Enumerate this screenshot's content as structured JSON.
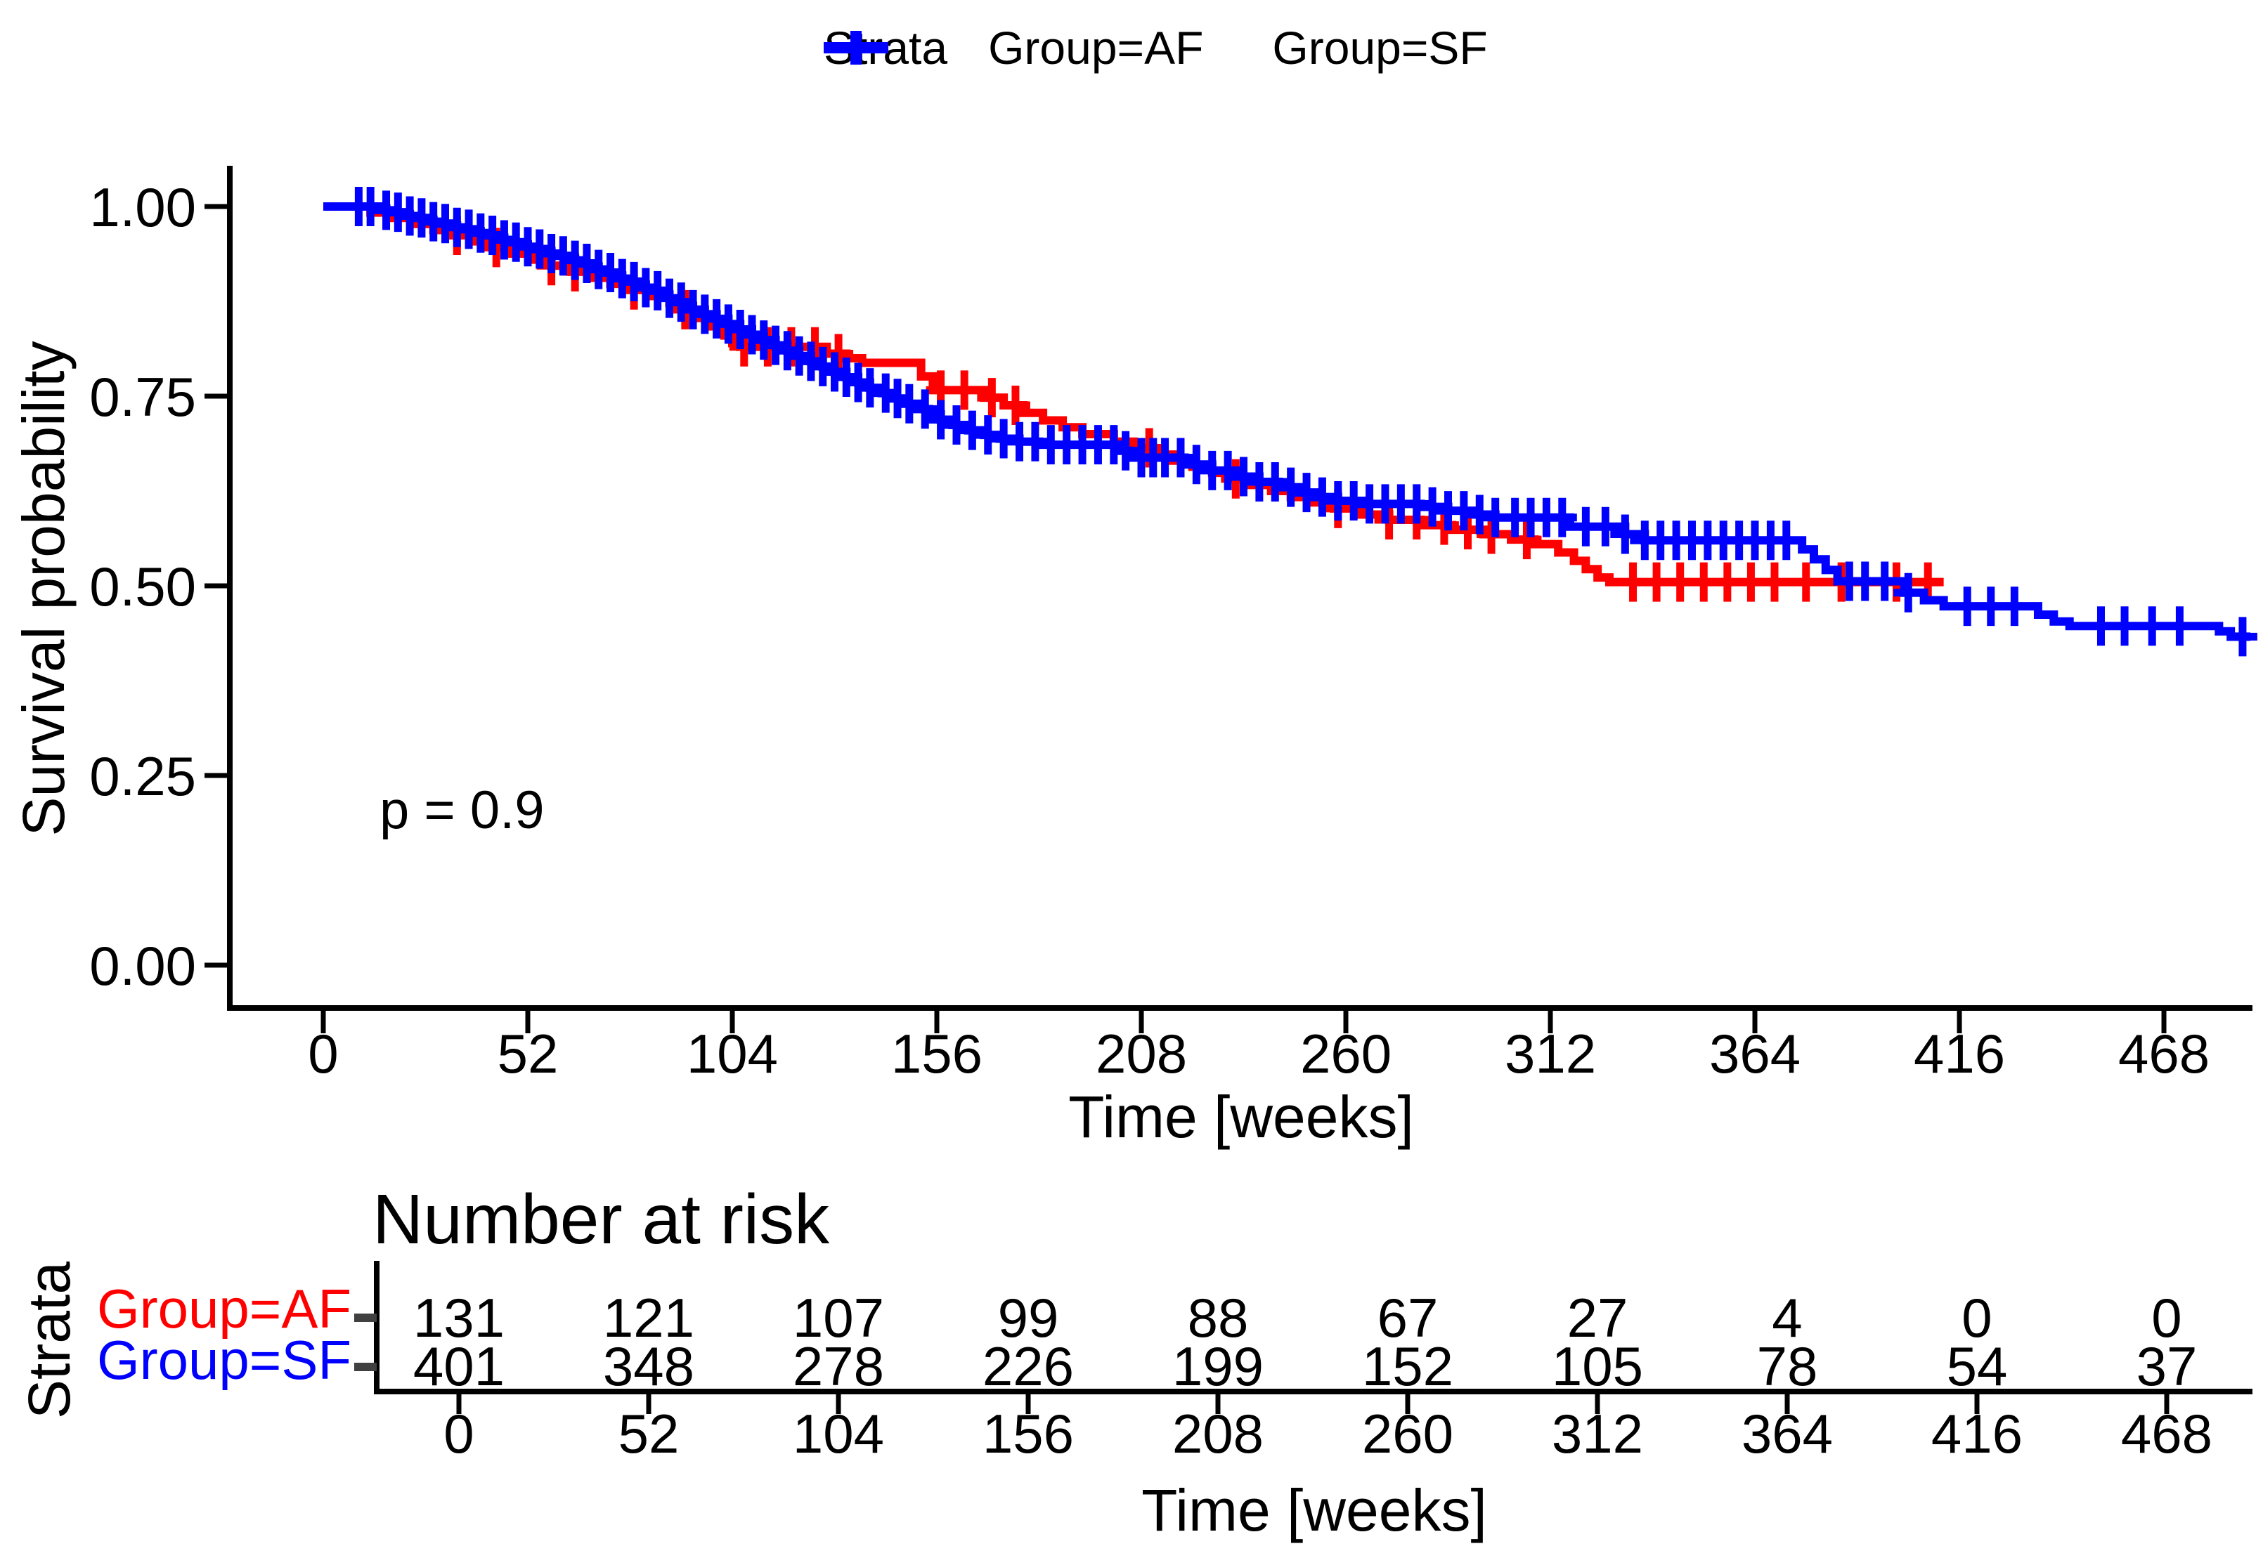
{
  "legend": {
    "title": "Strata",
    "items": [
      {
        "label": "Group=AF",
        "color": "#FF0000"
      },
      {
        "label": "Group=SF",
        "color": "#0000FF"
      }
    ]
  },
  "axes": {
    "y_title": "Survival probability",
    "x_title": "Time [weeks]",
    "y_ticks": [
      "1.00",
      "0.75",
      "0.50",
      "0.25",
      "0.00"
    ],
    "x_ticks": [
      0,
      52,
      104,
      156,
      208,
      260,
      312,
      364,
      416,
      468
    ]
  },
  "annotation": {
    "p_value": "p = 0.9"
  },
  "risk_table": {
    "title": "Number at risk",
    "axis_label": "Strata",
    "x_title": "Time [weeks]",
    "x_ticks": [
      0,
      52,
      104,
      156,
      208,
      260,
      312,
      364,
      416,
      468
    ],
    "rows": [
      {
        "label": "Group=AF",
        "color": "#FF0000",
        "counts": [
          131,
          121,
          107,
          99,
          88,
          67,
          27,
          4,
          0,
          0
        ]
      },
      {
        "label": "Group=SF",
        "color": "#0000FF",
        "counts": [
          401,
          348,
          278,
          226,
          199,
          152,
          105,
          78,
          54,
          37
        ]
      }
    ]
  },
  "chart_data": {
    "type": "line",
    "subtype": "kaplan-meier-step",
    "title": "",
    "xlabel": "Time [weeks]",
    "ylabel": "Survival probability",
    "xlim": [
      0,
      490
    ],
    "ylim": [
      0,
      1
    ],
    "grid": false,
    "legend_position": "top",
    "p_value_text": "p = 0.9",
    "series": [
      {
        "name": "Group=AF",
        "color": "#FF0000",
        "n_start": 131,
        "t_end": 412,
        "steps": [
          [
            0,
            1.0
          ],
          [
            12,
            0.992
          ],
          [
            18,
            0.985
          ],
          [
            23,
            0.977
          ],
          [
            28,
            0.969
          ],
          [
            33,
            0.962
          ],
          [
            38,
            0.954
          ],
          [
            43,
            0.946
          ],
          [
            48,
            0.938
          ],
          [
            53,
            0.93
          ],
          [
            58,
            0.922
          ],
          [
            63,
            0.914
          ],
          [
            68,
            0.906
          ],
          [
            73,
            0.898
          ],
          [
            78,
            0.89
          ],
          [
            83,
            0.882
          ],
          [
            88,
            0.873
          ],
          [
            92,
            0.864
          ],
          [
            96,
            0.853
          ],
          [
            99,
            0.842
          ],
          [
            102,
            0.83
          ],
          [
            104,
            0.82
          ],
          [
            106,
            0.815
          ],
          [
            128,
            0.806
          ],
          [
            133,
            0.8
          ],
          [
            137,
            0.794
          ],
          [
            152,
            0.776
          ],
          [
            155,
            0.758
          ],
          [
            168,
            0.748
          ],
          [
            173,
            0.738
          ],
          [
            178,
            0.728
          ],
          [
            183,
            0.718
          ],
          [
            188,
            0.709
          ],
          [
            193,
            0.7
          ],
          [
            201,
            0.69
          ],
          [
            206,
            0.682
          ],
          [
            211,
            0.673
          ],
          [
            216,
            0.665
          ],
          [
            221,
            0.657
          ],
          [
            226,
            0.649
          ],
          [
            231,
            0.641
          ],
          [
            236,
            0.633
          ],
          [
            241,
            0.625
          ],
          [
            246,
            0.617
          ],
          [
            251,
            0.61
          ],
          [
            257,
            0.602
          ],
          [
            264,
            0.594
          ],
          [
            271,
            0.587
          ],
          [
            279,
            0.58
          ],
          [
            287,
            0.574
          ],
          [
            295,
            0.568
          ],
          [
            302,
            0.561
          ],
          [
            308,
            0.555
          ],
          [
            314,
            0.544
          ],
          [
            318,
            0.533
          ],
          [
            321,
            0.522
          ],
          [
            324,
            0.511
          ],
          [
            327,
            0.505
          ]
        ],
        "censor_times": [
          34,
          44,
          58,
          64,
          79,
          92,
          107,
          113,
          119,
          125,
          131,
          157,
          163,
          170,
          176,
          210,
          232,
          258,
          271,
          278,
          285,
          291,
          297,
          306,
          333,
          339,
          345,
          351,
          357,
          363,
          369,
          377,
          386,
          400,
          408
        ]
      },
      {
        "name": "Group=SF",
        "color": "#0000FF",
        "n_start": 401,
        "t_end": 490,
        "steps": [
          [
            0,
            1.0
          ],
          [
            14,
            0.9975
          ],
          [
            16,
            0.995
          ],
          [
            18,
            0.9925
          ],
          [
            20,
            0.99
          ],
          [
            22,
            0.9875
          ],
          [
            24,
            0.985
          ],
          [
            26,
            0.9825
          ],
          [
            28,
            0.98
          ],
          [
            30,
            0.9775
          ],
          [
            32,
            0.975
          ],
          [
            34,
            0.9725
          ],
          [
            36,
            0.97
          ],
          [
            38,
            0.9675
          ],
          [
            40,
            0.965
          ],
          [
            42,
            0.962
          ],
          [
            44,
            0.959
          ],
          [
            46,
            0.956
          ],
          [
            48,
            0.953
          ],
          [
            50,
            0.95
          ],
          [
            52,
            0.947
          ],
          [
            54,
            0.944
          ],
          [
            56,
            0.941
          ],
          [
            58,
            0.938
          ],
          [
            60,
            0.935
          ],
          [
            62,
            0.932
          ],
          [
            64,
            0.929
          ],
          [
            66,
            0.925
          ],
          [
            68,
            0.921
          ],
          [
            70,
            0.917
          ],
          [
            72,
            0.913
          ],
          [
            74,
            0.909
          ],
          [
            76,
            0.905
          ],
          [
            78,
            0.901
          ],
          [
            80,
            0.897
          ],
          [
            82,
            0.893
          ],
          [
            84,
            0.889
          ],
          [
            86,
            0.884
          ],
          [
            88,
            0.879
          ],
          [
            90,
            0.874
          ],
          [
            92,
            0.869
          ],
          [
            94,
            0.864
          ],
          [
            97,
            0.858
          ],
          [
            100,
            0.852
          ],
          [
            103,
            0.845
          ],
          [
            106,
            0.838
          ],
          [
            109,
            0.831
          ],
          [
            112,
            0.824
          ],
          [
            115,
            0.817
          ],
          [
            118,
            0.81
          ],
          [
            121,
            0.803
          ],
          [
            124,
            0.796
          ],
          [
            127,
            0.789
          ],
          [
            130,
            0.782
          ],
          [
            133,
            0.775
          ],
          [
            136,
            0.768
          ],
          [
            139,
            0.761
          ],
          [
            142,
            0.754
          ],
          [
            145,
            0.747
          ],
          [
            148,
            0.74
          ],
          [
            151,
            0.733
          ],
          [
            154,
            0.726
          ],
          [
            157,
            0.719
          ],
          [
            160,
            0.712
          ],
          [
            164,
            0.705
          ],
          [
            168,
            0.699
          ],
          [
            172,
            0.694
          ],
          [
            177,
            0.69
          ],
          [
            182,
            0.686
          ],
          [
            202,
            0.678
          ],
          [
            205,
            0.669
          ],
          [
            219,
            0.66
          ],
          [
            226,
            0.652
          ],
          [
            232,
            0.644
          ],
          [
            238,
            0.637
          ],
          [
            243,
            0.63
          ],
          [
            248,
            0.623
          ],
          [
            252,
            0.617
          ],
          [
            258,
            0.612
          ],
          [
            264,
            0.608
          ],
          [
            279,
            0.604
          ],
          [
            286,
            0.599
          ],
          [
            293,
            0.594
          ],
          [
            298,
            0.59
          ],
          [
            317,
            0.578
          ],
          [
            331,
            0.568
          ],
          [
            336,
            0.56
          ],
          [
            376,
            0.548
          ],
          [
            379,
            0.535
          ],
          [
            382,
            0.521
          ],
          [
            385,
            0.506
          ],
          [
            402,
            0.491
          ],
          [
            407,
            0.481
          ],
          [
            412,
            0.473
          ],
          [
            436,
            0.462
          ],
          [
            440,
            0.453
          ],
          [
            444,
            0.447
          ],
          [
            482,
            0.44
          ],
          [
            485,
            0.433
          ]
        ],
        "censor_times": [
          9,
          12,
          16,
          19,
          22,
          25,
          28,
          31,
          34,
          37,
          40,
          43,
          46,
          49,
          52,
          55,
          58,
          61,
          64,
          67,
          70,
          73,
          76,
          79,
          82,
          85,
          88,
          91,
          94,
          97,
          100,
          103,
          106,
          109,
          112,
          115,
          118,
          121,
          124,
          127,
          130,
          133,
          136,
          139,
          143,
          146,
          149,
          153,
          157,
          161,
          165,
          169,
          173,
          177,
          181,
          185,
          189,
          193,
          197,
          201,
          204,
          208,
          211,
          214,
          218,
          222,
          226,
          230,
          234,
          238,
          242,
          246,
          250,
          254,
          258,
          262,
          266,
          270,
          274,
          278,
          282,
          286,
          290,
          294,
          298,
          303,
          307,
          311,
          315,
          321,
          326,
          331,
          336,
          340,
          344,
          348,
          352,
          356,
          360,
          364,
          368,
          372,
          388,
          392,
          397,
          403,
          418,
          424,
          430,
          452,
          458,
          465,
          472,
          488
        ]
      }
    ],
    "risk_table": {
      "title": "Number at risk",
      "time_points": [
        0,
        52,
        104,
        156,
        208,
        260,
        312,
        364,
        416,
        468
      ],
      "at_risk": {
        "Group=AF": [
          131,
          121,
          107,
          99,
          88,
          67,
          27,
          4,
          0,
          0
        ],
        "Group=SF": [
          401,
          348,
          278,
          226,
          199,
          152,
          105,
          78,
          54,
          37
        ]
      }
    }
  }
}
